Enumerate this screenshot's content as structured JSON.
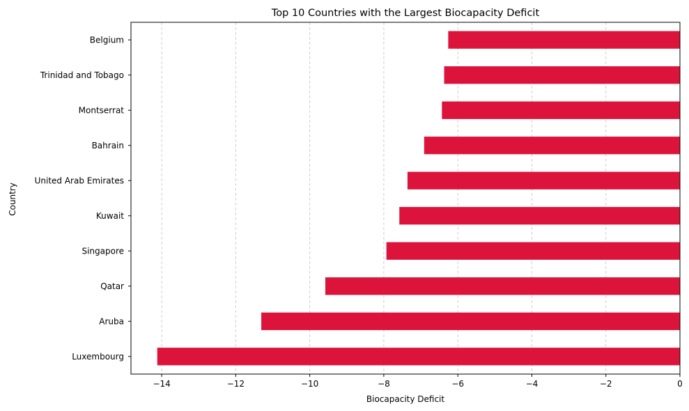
{
  "chart_data": {
    "type": "bar",
    "orientation": "horizontal",
    "title": "Top 10 Countries with the Largest Biocapacity Deficit",
    "xlabel": "Biocapacity Deficit",
    "ylabel": "Country",
    "categories": [
      "Belgium",
      "Trinidad and Tobago",
      "Montserrat",
      "Bahrain",
      "United Arab Emirates",
      "Kuwait",
      "Singapore",
      "Qatar",
      "Aruba",
      "Luxembourg"
    ],
    "values": [
      -6.26,
      -6.37,
      -6.43,
      -6.91,
      -7.36,
      -7.58,
      -7.93,
      -9.58,
      -11.31,
      -14.12
    ],
    "xlim": [
      -14.83,
      0
    ],
    "xticks": [
      -14,
      -12,
      -10,
      -8,
      -6,
      -4,
      -2,
      0
    ],
    "xtick_labels": [
      "−14",
      "−12",
      "−10",
      "−8",
      "−6",
      "−4",
      "−2",
      "0"
    ],
    "grid": "x-dashed",
    "bar_color": "#dc143c"
  }
}
